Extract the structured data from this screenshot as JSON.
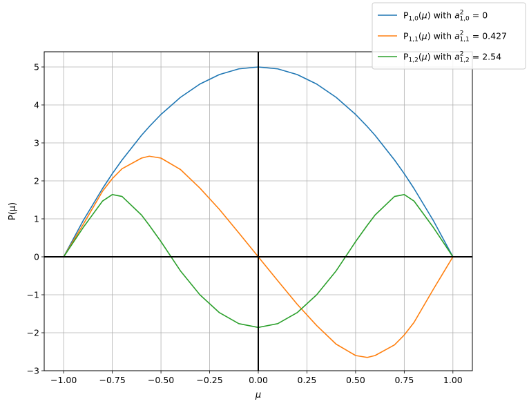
{
  "chart_data": {
    "type": "line",
    "title": "",
    "xlabel": "μ",
    "ylabel": "P(μ)",
    "xlim": [
      -1.1,
      1.1
    ],
    "ylim": [
      -3.0,
      5.4
    ],
    "xticks": [
      -1.0,
      -0.75,
      -0.5,
      -0.25,
      0.0,
      0.25,
      0.5,
      0.75,
      1.0
    ],
    "xtick_labels": [
      "−1.00",
      "−0.75",
      "−0.50",
      "−0.25",
      "0.00",
      "0.25",
      "0.50",
      "0.75",
      "1.00"
    ],
    "yticks": [
      -3,
      -2,
      -1,
      0,
      1,
      2,
      3,
      4,
      5
    ],
    "ytick_labels": [
      "−3",
      "−2",
      "−1",
      "0",
      "1",
      "2",
      "3",
      "4",
      "5"
    ],
    "grid": true,
    "legend_position": "top-right",
    "x": [
      -1.0,
      -0.9,
      -0.8,
      -0.75,
      -0.7,
      -0.6,
      -0.56,
      -0.5,
      -0.4,
      -0.3,
      -0.2,
      -0.1,
      0.0,
      0.1,
      0.2,
      0.3,
      0.4,
      0.5,
      0.56,
      0.6,
      0.7,
      0.75,
      0.8,
      0.9,
      1.0
    ],
    "series": [
      {
        "legend": {
          "base": "P",
          "sub": "1,0",
          "mid": "(μ) with ",
          "a": "a",
          "sup": "2",
          "asub": "1,0",
          "value": " = 0"
        },
        "color": "#1f77b4",
        "y": [
          0.0,
          0.95,
          1.8,
          2.19,
          2.55,
          3.2,
          3.43,
          3.75,
          4.2,
          4.55,
          4.8,
          4.95,
          5.0,
          4.95,
          4.8,
          4.55,
          4.2,
          3.75,
          3.43,
          3.2,
          2.55,
          2.19,
          1.8,
          0.95,
          0.0
        ]
      },
      {
        "legend": {
          "base": "P",
          "sub": "1,1",
          "mid": "(μ) with ",
          "a": "a",
          "sup": "2",
          "asub": "1,1",
          "value": " = 0.427"
        },
        "color": "#ff7f0e",
        "y": [
          0.0,
          0.85,
          1.73,
          2.06,
          2.32,
          2.6,
          2.65,
          2.6,
          2.3,
          1.81,
          1.25,
          0.63,
          0.0,
          -0.63,
          -1.25,
          -1.81,
          -2.3,
          -2.6,
          -2.65,
          -2.6,
          -2.32,
          -2.06,
          -1.73,
          -0.85,
          0.0
        ]
      },
      {
        "legend": {
          "base": "P",
          "sub": "1,2",
          "mid": "(μ) with ",
          "a": "a",
          "sup": "2",
          "asub": "1,2",
          "value": " = 2.54"
        },
        "color": "#2ca02c",
        "y": [
          0.0,
          0.77,
          1.47,
          1.64,
          1.59,
          1.1,
          0.83,
          0.4,
          -0.37,
          -1.0,
          -1.47,
          -1.76,
          -1.86,
          -1.76,
          -1.47,
          -1.0,
          -0.37,
          0.4,
          0.83,
          1.1,
          1.59,
          1.64,
          1.47,
          0.77,
          0.0
        ]
      }
    ]
  }
}
